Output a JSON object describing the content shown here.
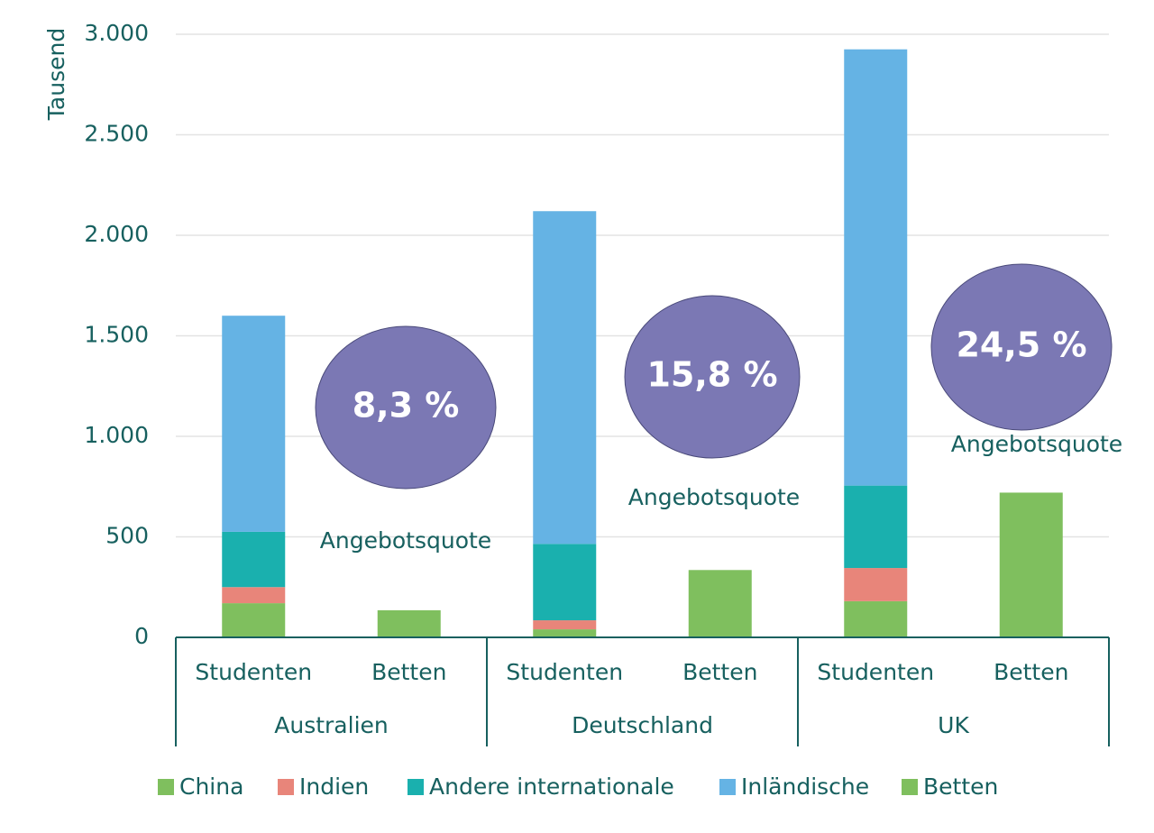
{
  "chart_data": {
    "type": "stacked_bar",
    "y_label": "Tausend",
    "categories": [
      "Studenten",
      "Betten",
      "Studenten",
      "Betten",
      "Studenten",
      "Betten"
    ],
    "groups": [
      "Australien",
      "Deutschland",
      "UK"
    ],
    "series": [
      {
        "name": "China",
        "color": "#7fbf5e",
        "values": [
          170,
          null,
          40,
          null,
          180,
          null
        ]
      },
      {
        "name": "Indien",
        "color": "#e8857a",
        "values": [
          80,
          null,
          45,
          null,
          165,
          null
        ]
      },
      {
        "name": "Andere internationale",
        "color": "#1ab0ae",
        "values": [
          275,
          null,
          380,
          null,
          410,
          null
        ]
      },
      {
        "name": "Inländische",
        "color": "#65b3e4",
        "values": [
          1075,
          null,
          1655,
          null,
          2170,
          null
        ]
      },
      {
        "name": "Betten",
        "color": "#7fbf5e",
        "values": [
          null,
          135,
          null,
          335,
          null,
          720
        ]
      }
    ],
    "ylim": [
      0,
      3000
    ],
    "yticks": [
      0,
      500,
      {
        "value": 1000,
        "label": "1.000"
      },
      {
        "value": 1500,
        "label": "1.500"
      },
      {
        "value": 2000,
        "label": "2.000"
      },
      {
        "value": 2500,
        "label": "2.500"
      },
      {
        "value": 3000,
        "label": "3.000"
      }
    ],
    "grid": true,
    "annotations": [
      {
        "text": "8,3 %",
        "caption": "Angebotsquote"
      },
      {
        "text": "15,8 %",
        "caption": "Angebotsquote"
      },
      {
        "text": "24,5 %",
        "caption": "Angebotsquote"
      }
    ]
  }
}
